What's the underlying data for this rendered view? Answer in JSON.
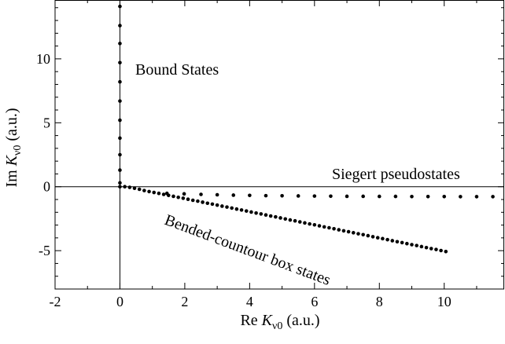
{
  "chart_data": {
    "type": "scatter",
    "xlim": [
      -2,
      11.85
    ],
    "ylim": [
      -8,
      14.6
    ],
    "xticks": [
      -2,
      0,
      2,
      4,
      6,
      8,
      10
    ],
    "yticks": [
      -5,
      0,
      5,
      10
    ],
    "xtick_labels": [
      "-2",
      "0",
      "2",
      "4",
      "6",
      "8",
      "10"
    ],
    "ytick_labels": [
      "-5",
      "0",
      "5",
      "10"
    ],
    "xlabel": {
      "prefix": "Re ",
      "var": "K",
      "sub": "ν0",
      "suffix": " (a.u.)"
    },
    "ylabel": {
      "prefix": "Im ",
      "var": "K",
      "sub": "ν0",
      "suffix": " (a.u.)"
    },
    "grid": false,
    "reference_lines": {
      "x": 0,
      "y": 0
    },
    "annotations": {
      "bound": "Bound States",
      "siegert": "Siegert pseudostates",
      "bcbox": "Bended-countour box states"
    },
    "series": [
      {
        "points": [
          [
            0,
            0.3
          ],
          [
            0,
            1.3
          ],
          [
            0,
            2.5
          ],
          [
            0,
            3.8
          ],
          [
            0,
            5.2
          ],
          [
            0,
            6.7
          ],
          [
            0,
            8.2
          ],
          [
            0,
            9.7
          ],
          [
            0,
            11.2
          ],
          [
            0,
            12.6
          ],
          [
            0,
            14.1
          ]
        ]
      },
      {
        "points": [
          [
            1.45,
            -0.52
          ],
          [
            1.98,
            -0.56
          ],
          [
            2.5,
            -0.6
          ],
          [
            3.0,
            -0.63
          ],
          [
            3.5,
            -0.66
          ],
          [
            4.0,
            -0.68
          ],
          [
            4.5,
            -0.7
          ],
          [
            5.0,
            -0.71
          ],
          [
            5.5,
            -0.72
          ],
          [
            6.0,
            -0.73
          ],
          [
            6.5,
            -0.74
          ],
          [
            7.0,
            -0.75
          ],
          [
            7.5,
            -0.75
          ],
          [
            8.0,
            -0.76
          ],
          [
            8.5,
            -0.76
          ],
          [
            9.0,
            -0.77
          ],
          [
            9.5,
            -0.77
          ],
          [
            10.0,
            -0.77
          ],
          [
            10.5,
            -0.78
          ],
          [
            11.0,
            -0.78
          ],
          [
            11.5,
            -0.78
          ]
        ]
      },
      {
        "points": [
          [
            0.0,
            0.0
          ],
          [
            0.15,
            0.0
          ],
          [
            0.3,
            -0.05
          ],
          [
            0.45,
            -0.12
          ],
          [
            0.6,
            -0.2
          ],
          [
            0.75,
            -0.3
          ],
          [
            0.9,
            -0.38
          ],
          [
            1.05,
            -0.45
          ],
          [
            1.2,
            -0.52
          ],
          [
            1.35,
            -0.6
          ],
          [
            1.5,
            -0.68
          ],
          [
            1.65,
            -0.75
          ],
          [
            1.8,
            -0.83
          ],
          [
            1.95,
            -0.9
          ],
          [
            2.1,
            -0.98
          ],
          [
            2.25,
            -1.06
          ],
          [
            2.4,
            -1.13
          ],
          [
            2.55,
            -1.21
          ],
          [
            2.7,
            -1.29
          ],
          [
            2.85,
            -1.36
          ],
          [
            3.0,
            -1.44
          ],
          [
            3.15,
            -1.52
          ],
          [
            3.3,
            -1.59
          ],
          [
            3.45,
            -1.67
          ],
          [
            3.6,
            -1.75
          ],
          [
            3.75,
            -1.82
          ],
          [
            3.9,
            -1.9
          ],
          [
            4.05,
            -1.98
          ],
          [
            4.2,
            -2.06
          ],
          [
            4.35,
            -2.13
          ],
          [
            4.5,
            -2.21
          ],
          [
            4.65,
            -2.29
          ],
          [
            4.8,
            -2.36
          ],
          [
            4.95,
            -2.44
          ],
          [
            5.1,
            -2.52
          ],
          [
            5.25,
            -2.6
          ],
          [
            5.4,
            -2.67
          ],
          [
            5.55,
            -2.75
          ],
          [
            5.7,
            -2.83
          ],
          [
            5.85,
            -2.91
          ],
          [
            6.0,
            -2.98
          ],
          [
            6.15,
            -3.06
          ],
          [
            6.3,
            -3.14
          ],
          [
            6.45,
            -3.21
          ],
          [
            6.6,
            -3.29
          ],
          [
            6.75,
            -3.37
          ],
          [
            6.9,
            -3.45
          ],
          [
            7.05,
            -3.52
          ],
          [
            7.2,
            -3.6
          ],
          [
            7.35,
            -3.68
          ],
          [
            7.5,
            -3.75
          ],
          [
            7.65,
            -3.83
          ],
          [
            7.8,
            -3.91
          ],
          [
            7.95,
            -3.99
          ],
          [
            8.1,
            -4.06
          ],
          [
            8.25,
            -4.14
          ],
          [
            8.4,
            -4.22
          ],
          [
            8.55,
            -4.3
          ],
          [
            8.7,
            -4.37
          ],
          [
            8.85,
            -4.45
          ],
          [
            9.0,
            -4.53
          ],
          [
            9.15,
            -4.6
          ],
          [
            9.3,
            -4.68
          ],
          [
            9.45,
            -4.76
          ],
          [
            9.6,
            -4.84
          ],
          [
            9.75,
            -4.91
          ],
          [
            9.9,
            -4.99
          ],
          [
            10.05,
            -5.07
          ]
        ]
      }
    ]
  }
}
